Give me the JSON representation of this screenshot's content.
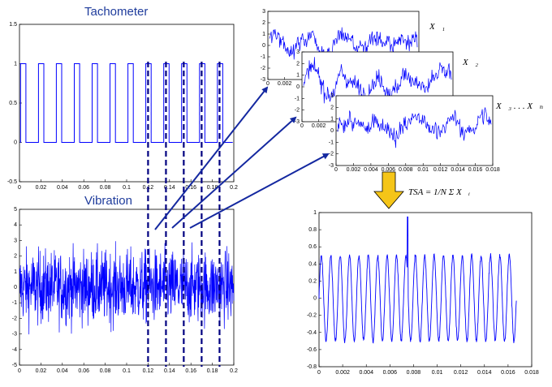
{
  "colors": {
    "signal": "#0000ff",
    "title": "#1f3c9c",
    "dashes": "#000080",
    "arrow": "#1428a0",
    "down_arrow": "#f5c518"
  },
  "labels": {
    "tachometer_title": "Tachometer",
    "vibration_title": "Vibration",
    "x1_label": "X⃗₁",
    "x2_label": "X⃗₂",
    "x3n_label": "X⃗₃ . . . X⃗ₙ",
    "tsa_formula": "TSA = 1/N Σ X⃗ᵢ"
  },
  "chart_data": [
    {
      "type": "line",
      "id": "tachometer",
      "title": "Tachometer",
      "xlim": [
        0,
        0.2
      ],
      "ylim": [
        -0.5,
        1.5
      ],
      "x_ticks": [
        "0",
        "0.02",
        "0.04",
        "0.06",
        "0.08",
        "0.1",
        "0.12",
        "0.14",
        "0.16",
        "0.18",
        "0.2"
      ],
      "y_ticks": [
        "-0.5",
        "0",
        "0.5",
        "1",
        "1.5"
      ],
      "pulse_period": 0.0167,
      "pulse_high": 1,
      "pulse_low": 0,
      "duty": 0.3
    },
    {
      "type": "line",
      "id": "vibration",
      "title": "Vibration",
      "xlim": [
        0,
        0.2
      ],
      "ylim": [
        -5,
        5
      ],
      "x_ticks": [
        "0",
        "0.02",
        "0.04",
        "0.06",
        "0.08",
        "0.1",
        "0.12",
        "0.14",
        "0.16",
        "0.18",
        "0.2"
      ],
      "y_ticks": [
        "-5",
        "-4",
        "-3",
        "-2",
        "-1",
        "0",
        "1",
        "2",
        "3",
        "4",
        "5"
      ],
      "amplitude": 2.2,
      "segment_marks_x": [
        0.12,
        0.1367,
        0.1533,
        0.17,
        0.1867
      ]
    },
    {
      "type": "line",
      "id": "x1",
      "xlim": [
        0,
        0.018
      ],
      "ylim": [
        -3,
        3
      ],
      "x_ticks": [
        "0",
        "0.002"
      ],
      "y_ticks": [
        "-3",
        "-2",
        "-1",
        "0",
        "1",
        "2",
        "3"
      ]
    },
    {
      "type": "line",
      "id": "x2",
      "xlim": [
        0,
        0.018
      ],
      "ylim": [
        -3,
        3
      ],
      "x_ticks": [
        "0",
        "0.002"
      ],
      "y_ticks": [
        "-3",
        "-2",
        "-1",
        "0",
        "1",
        "2",
        "3"
      ]
    },
    {
      "type": "line",
      "id": "x3",
      "xlim": [
        0,
        0.018
      ],
      "ylim": [
        -3,
        3
      ],
      "x_ticks": [
        "0",
        "0.002",
        "0.004",
        "0.006",
        "0.008",
        "0.01",
        "0.012",
        "0.014",
        "0.016",
        "0.018"
      ],
      "y_ticks": [
        "-3",
        "-2",
        "-1",
        "0",
        "1",
        "2",
        "3"
      ]
    },
    {
      "type": "line",
      "id": "tsa",
      "xlim": [
        0,
        0.018
      ],
      "ylim": [
        -0.8,
        1
      ],
      "x_ticks": [
        "0",
        "0.002",
        "0.004",
        "0.006",
        "0.008",
        "0.01",
        "0.012",
        "0.014",
        "0.016",
        "0.018"
      ],
      "y_ticks": [
        "-0.8",
        "-0.6",
        "-0.4",
        "-0.2",
        "0",
        "0.2",
        "0.4",
        "0.6",
        "0.8",
        "1"
      ],
      "cycles": 21,
      "amplitude": 0.5,
      "spike_x": 0.0075,
      "spike_y": 0.95,
      "x_end": 0.0167
    }
  ]
}
